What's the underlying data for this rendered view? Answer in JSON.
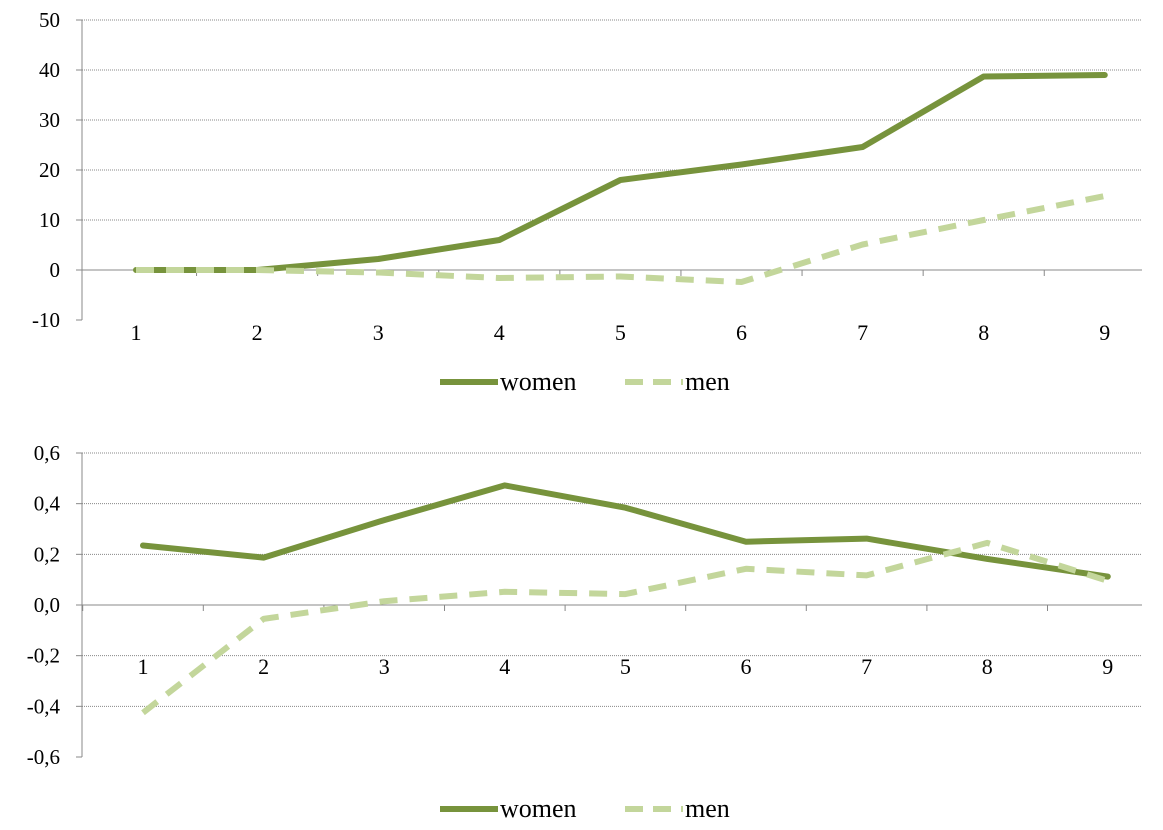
{
  "chart_data": [
    {
      "type": "line",
      "categories": [
        "1",
        "2",
        "3",
        "4",
        "5",
        "6",
        "7",
        "8",
        "9"
      ],
      "ylim": [
        -10,
        50
      ],
      "yticks": [
        "-10",
        "0",
        "10",
        "20",
        "30",
        "40",
        "50"
      ],
      "grid": true,
      "legend_position": "bottom",
      "series": [
        {
          "name": "women",
          "color": "#77933c",
          "style": "solid",
          "values": [
            0,
            0,
            2.2,
            6,
            18,
            21.1,
            24.6,
            38.7,
            39
          ]
        },
        {
          "name": "men",
          "color": "#c3d69b",
          "style": "dashed",
          "values": [
            0,
            0,
            -0.5,
            -1.6,
            -1.3,
            -2.4,
            5.1,
            10,
            14.8
          ]
        }
      ]
    },
    {
      "type": "line",
      "categories": [
        "1",
        "2",
        "3",
        "4",
        "5",
        "6",
        "7",
        "8",
        "9"
      ],
      "ylim": [
        -0.6,
        0.6
      ],
      "yticks": [
        "-0,6",
        "-0,4",
        "-0,2",
        "0,0",
        "0,2",
        "0,4",
        "0,6"
      ],
      "grid": true,
      "legend_position": "bottom",
      "series": [
        {
          "name": "women",
          "color": "#77933c",
          "style": "solid",
          "values": [
            0.235,
            0.187,
            0.335,
            0.472,
            0.384,
            0.25,
            0.262,
            0.182,
            0.112
          ]
        },
        {
          "name": "men",
          "color": "#c3d69b",
          "style": "dashed",
          "values": [
            -0.425,
            -0.055,
            0.015,
            0.052,
            0.043,
            0.143,
            0.117,
            0.245,
            0.095
          ]
        }
      ]
    }
  ]
}
